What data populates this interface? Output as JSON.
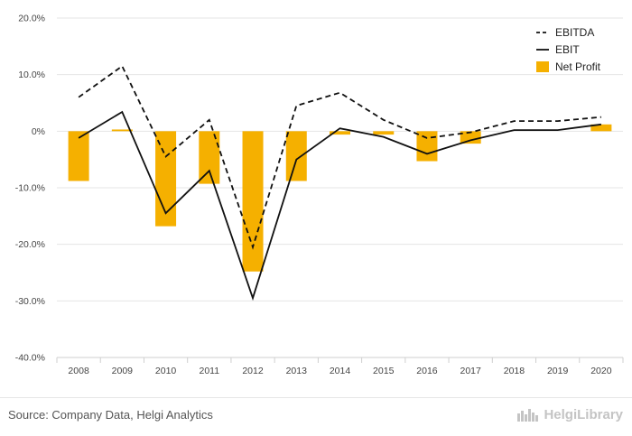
{
  "chart_data": {
    "type": "bar",
    "categories": [
      "2008",
      "2009",
      "2010",
      "2011",
      "2012",
      "2013",
      "2014",
      "2015",
      "2016",
      "2017",
      "2018",
      "2019",
      "2020"
    ],
    "y_ticks": [
      "20.0%",
      "10.0%",
      "0%",
      "-10.0%",
      "-20.0%",
      "-30.0%",
      "-40.0%"
    ],
    "ylim": [
      -40,
      20
    ],
    "grid": true,
    "legend_position": "top-right",
    "series": [
      {
        "name": "EBITDA",
        "render": "line",
        "style": "dashed",
        "color": "#111111",
        "values": [
          6.0,
          11.5,
          -4.5,
          2.0,
          -20.5,
          4.5,
          6.8,
          2.0,
          -1.2,
          -0.2,
          1.8,
          1.8,
          2.5
        ]
      },
      {
        "name": "EBIT",
        "render": "line",
        "style": "solid",
        "color": "#111111",
        "values": [
          -1.2,
          3.4,
          -14.5,
          -7.0,
          -29.5,
          -5.0,
          0.5,
          -1.0,
          -4.0,
          -1.6,
          0.2,
          0.2,
          1.2
        ]
      },
      {
        "name": "Net Profit",
        "render": "bar",
        "color": "#F5B000",
        "values": [
          -8.8,
          0.3,
          -16.8,
          -9.3,
          -24.8,
          -8.8,
          -0.6,
          -0.6,
          -5.3,
          -2.2,
          0.0,
          0.0,
          1.2
        ]
      }
    ]
  },
  "footer": {
    "source": "Source: Company Data, Helgi Analytics",
    "logo_text": "HelgiLibrary",
    "logo_icon": "helgi-library-icon"
  }
}
